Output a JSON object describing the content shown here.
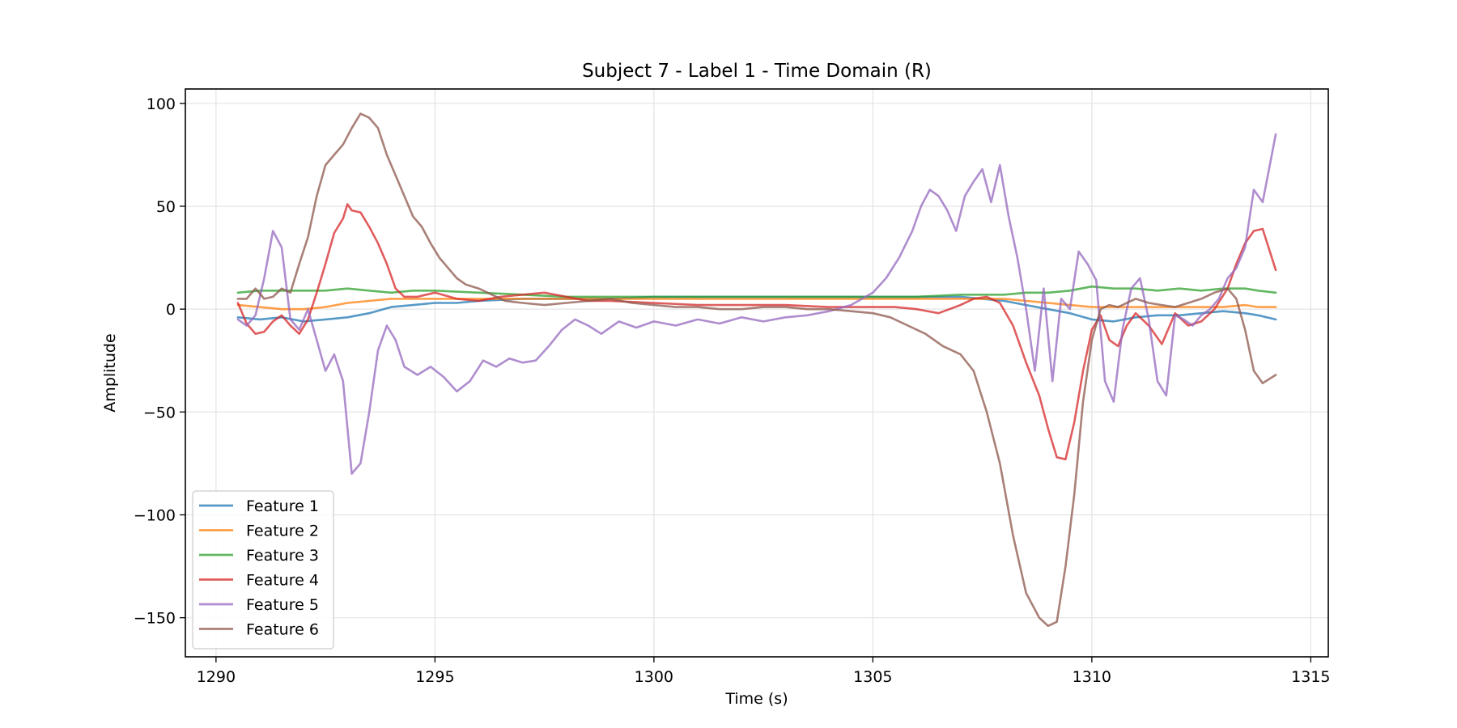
{
  "chart_data": {
    "type": "line",
    "title": "Subject 7 - Label 1 - Time Domain (R)",
    "xlabel": "Time (s)",
    "ylabel": "Amplitude",
    "xlim": [
      1289.3,
      1315.4
    ],
    "ylim": [
      -169,
      107
    ],
    "xticks": [
      1290,
      1295,
      1300,
      1305,
      1310,
      1315
    ],
    "xtick_labels": [
      "1290",
      "1295",
      "1300",
      "1305",
      "1310",
      "1315"
    ],
    "yticks": [
      100,
      50,
      0,
      -50,
      -100,
      -150
    ],
    "ytick_labels": [
      "100",
      "50",
      "0",
      "−50",
      "−100",
      "−150"
    ],
    "grid": true,
    "legend_position": "lower-left",
    "series": [
      {
        "name": "Feature 1",
        "color": "#1f77b4",
        "x": [
          1290.5,
          1291.0,
          1291.5,
          1292.0,
          1292.5,
          1293.0,
          1293.5,
          1294.0,
          1294.5,
          1295.0,
          1295.5,
          1296.0,
          1297.0,
          1298.0,
          1299.0,
          1300.0,
          1301.0,
          1302.0,
          1303.0,
          1304.0,
          1305.0,
          1306.0,
          1307.0,
          1307.5,
          1308.0,
          1308.5,
          1309.0,
          1309.5,
          1310.0,
          1310.5,
          1311.0,
          1311.5,
          1312.0,
          1312.5,
          1313.0,
          1313.5,
          1313.8,
          1314.2
        ],
        "y": [
          -4,
          -5,
          -4,
          -6,
          -5,
          -4,
          -2,
          1,
          2,
          3,
          3,
          4,
          5,
          5,
          5,
          6,
          6,
          6,
          6,
          6,
          6,
          6,
          6,
          5,
          4,
          2,
          0,
          -2,
          -5,
          -6,
          -4,
          -3,
          -3,
          -2,
          -1,
          -2,
          -3,
          -5
        ]
      },
      {
        "name": "Feature 2",
        "color": "#ff7f0e",
        "x": [
          1290.5,
          1291.0,
          1291.5,
          1292.0,
          1292.5,
          1293.0,
          1293.5,
          1294.0,
          1294.5,
          1295.0,
          1296.0,
          1297.0,
          1298.0,
          1299.0,
          1300.0,
          1301.0,
          1302.0,
          1303.0,
          1304.0,
          1305.0,
          1306.0,
          1307.0,
          1308.0,
          1308.5,
          1309.0,
          1309.5,
          1310.0,
          1310.5,
          1311.0,
          1312.0,
          1312.5,
          1313.0,
          1313.5,
          1313.8,
          1314.2
        ],
        "y": [
          2,
          1,
          0,
          0,
          1,
          3,
          4,
          5,
          5,
          5,
          5,
          5,
          5,
          5,
          5,
          5,
          5,
          5,
          5,
          5,
          5,
          5,
          5,
          4,
          3,
          2,
          1,
          1,
          1,
          1,
          1,
          1,
          2,
          1,
          1
        ]
      },
      {
        "name": "Feature 3",
        "color": "#2ca02c",
        "x": [
          1290.5,
          1291.0,
          1291.5,
          1292.0,
          1292.5,
          1293.0,
          1293.5,
          1294.0,
          1294.5,
          1295.0,
          1296.0,
          1297.0,
          1298.0,
          1299.0,
          1300.0,
          1301.0,
          1302.0,
          1303.0,
          1304.0,
          1305.0,
          1306.0,
          1307.0,
          1308.0,
          1308.5,
          1309.0,
          1309.5,
          1310.0,
          1310.5,
          1311.0,
          1311.5,
          1312.0,
          1312.5,
          1313.0,
          1313.5,
          1313.8,
          1314.2
        ],
        "y": [
          8,
          9,
          9,
          9,
          9,
          10,
          9,
          8,
          9,
          9,
          8,
          7,
          6,
          6,
          6,
          6,
          6,
          6,
          6,
          6,
          6,
          7,
          7,
          8,
          8,
          9,
          11,
          10,
          10,
          9,
          10,
          9,
          10,
          10,
          9,
          8
        ]
      },
      {
        "name": "Feature 4",
        "color": "#d62728",
        "x": [
          1290.5,
          1290.7,
          1290.9,
          1291.1,
          1291.3,
          1291.5,
          1291.7,
          1291.9,
          1292.1,
          1292.3,
          1292.5,
          1292.7,
          1292.9,
          1293.0,
          1293.1,
          1293.3,
          1293.5,
          1293.7,
          1293.9,
          1294.1,
          1294.3,
          1294.6,
          1295.0,
          1295.5,
          1296.0,
          1296.5,
          1297.0,
          1297.5,
          1298.0,
          1298.5,
          1299.0,
          1300.0,
          1301.0,
          1302.0,
          1303.0,
          1304.0,
          1305.0,
          1305.5,
          1306.0,
          1306.5,
          1307.0,
          1307.3,
          1307.6,
          1307.9,
          1308.2,
          1308.5,
          1308.8,
          1309.0,
          1309.2,
          1309.4,
          1309.6,
          1309.8,
          1310.0,
          1310.2,
          1310.4,
          1310.6,
          1310.8,
          1311.0,
          1311.3,
          1311.6,
          1311.9,
          1312.2,
          1312.5,
          1312.8,
          1313.1,
          1313.3,
          1313.5,
          1313.7,
          1313.9,
          1314.2
        ],
        "y": [
          3,
          -7,
          -12,
          -11,
          -6,
          -3,
          -8,
          -12,
          -5,
          8,
          22,
          37,
          44,
          51,
          48,
          47,
          40,
          32,
          22,
          10,
          6,
          6,
          8,
          5,
          4,
          6,
          7,
          8,
          6,
          4,
          4,
          3,
          2,
          2,
          2,
          1,
          1,
          1,
          0,
          -2,
          2,
          5,
          6,
          3,
          -8,
          -26,
          -42,
          -58,
          -72,
          -73,
          -55,
          -30,
          -10,
          -3,
          -15,
          -18,
          -8,
          -2,
          -8,
          -17,
          -2,
          -8,
          -6,
          0,
          10,
          22,
          32,
          38,
          39,
          19
        ]
      },
      {
        "name": "Feature 5",
        "color": "#9467bd",
        "x": [
          1290.5,
          1290.7,
          1290.9,
          1291.1,
          1291.3,
          1291.5,
          1291.7,
          1291.9,
          1292.1,
          1292.3,
          1292.5,
          1292.7,
          1292.9,
          1293.1,
          1293.3,
          1293.5,
          1293.7,
          1293.9,
          1294.1,
          1294.3,
          1294.6,
          1294.9,
          1295.2,
          1295.5,
          1295.8,
          1296.1,
          1296.4,
          1296.7,
          1297.0,
          1297.3,
          1297.6,
          1297.9,
          1298.2,
          1298.5,
          1298.8,
          1299.2,
          1299.6,
          1300.0,
          1300.5,
          1301.0,
          1301.5,
          1302.0,
          1302.5,
          1303.0,
          1303.5,
          1304.0,
          1304.5,
          1305.0,
          1305.3,
          1305.6,
          1305.9,
          1306.1,
          1306.3,
          1306.5,
          1306.7,
          1306.9,
          1307.1,
          1307.3,
          1307.5,
          1307.7,
          1307.9,
          1308.1,
          1308.3,
          1308.5,
          1308.7,
          1308.9,
          1309.1,
          1309.3,
          1309.5,
          1309.7,
          1309.9,
          1310.1,
          1310.3,
          1310.5,
          1310.7,
          1310.9,
          1311.1,
          1311.3,
          1311.5,
          1311.7,
          1311.9,
          1312.1,
          1312.3,
          1312.5,
          1312.7,
          1312.9,
          1313.1,
          1313.3,
          1313.5,
          1313.7,
          1313.9,
          1314.2
        ],
        "y": [
          -5,
          -8,
          -3,
          15,
          38,
          30,
          -5,
          -10,
          0,
          -15,
          -30,
          -22,
          -35,
          -80,
          -75,
          -50,
          -20,
          -8,
          -15,
          -28,
          -32,
          -28,
          -33,
          -40,
          -35,
          -25,
          -28,
          -24,
          -26,
          -25,
          -18,
          -10,
          -5,
          -8,
          -12,
          -6,
          -9,
          -6,
          -8,
          -5,
          -7,
          -4,
          -6,
          -4,
          -3,
          -1,
          2,
          8,
          15,
          25,
          38,
          50,
          58,
          55,
          48,
          38,
          55,
          62,
          68,
          52,
          70,
          45,
          25,
          0,
          -30,
          10,
          -35,
          5,
          0,
          28,
          22,
          14,
          -35,
          -45,
          -10,
          10,
          15,
          -5,
          -35,
          -42,
          -3,
          -5,
          -8,
          -3,
          0,
          5,
          15,
          20,
          30,
          58,
          52,
          85
        ]
      },
      {
        "name": "Feature 6",
        "color": "#8c564b",
        "x": [
          1290.5,
          1290.7,
          1290.9,
          1291.1,
          1291.3,
          1291.5,
          1291.7,
          1291.9,
          1292.1,
          1292.3,
          1292.5,
          1292.7,
          1292.9,
          1293.1,
          1293.3,
          1293.5,
          1293.7,
          1293.9,
          1294.1,
          1294.3,
          1294.5,
          1294.7,
          1294.9,
          1295.1,
          1295.3,
          1295.5,
          1295.7,
          1296.0,
          1296.3,
          1296.6,
          1297.0,
          1297.5,
          1298.0,
          1298.5,
          1299.0,
          1299.5,
          1300.0,
          1300.5,
          1301.0,
          1301.5,
          1302.0,
          1302.5,
          1303.0,
          1303.5,
          1304.0,
          1304.5,
          1305.0,
          1305.4,
          1305.8,
          1306.2,
          1306.6,
          1307.0,
          1307.3,
          1307.6,
          1307.9,
          1308.2,
          1308.5,
          1308.8,
          1309.0,
          1309.2,
          1309.4,
          1309.6,
          1309.8,
          1310.0,
          1310.2,
          1310.4,
          1310.6,
          1310.8,
          1311.0,
          1311.3,
          1311.6,
          1311.9,
          1312.2,
          1312.5,
          1312.8,
          1313.1,
          1313.3,
          1313.5,
          1313.7,
          1313.9,
          1314.2
        ],
        "y": [
          5,
          5,
          10,
          5,
          6,
          10,
          8,
          22,
          35,
          55,
          70,
          75,
          80,
          88,
          95,
          93,
          88,
          75,
          65,
          55,
          45,
          40,
          32,
          25,
          20,
          15,
          12,
          10,
          7,
          4,
          3,
          2,
          3,
          4,
          5,
          3,
          2,
          1,
          1,
          0,
          0,
          1,
          1,
          0,
          0,
          -1,
          -2,
          -4,
          -8,
          -12,
          -18,
          -22,
          -30,
          -50,
          -75,
          -110,
          -138,
          -150,
          -154,
          -152,
          -125,
          -90,
          -45,
          -15,
          0,
          2,
          1,
          3,
          5,
          3,
          2,
          1,
          3,
          5,
          8,
          10,
          5,
          -10,
          -30,
          -36,
          -32
        ]
      }
    ]
  }
}
